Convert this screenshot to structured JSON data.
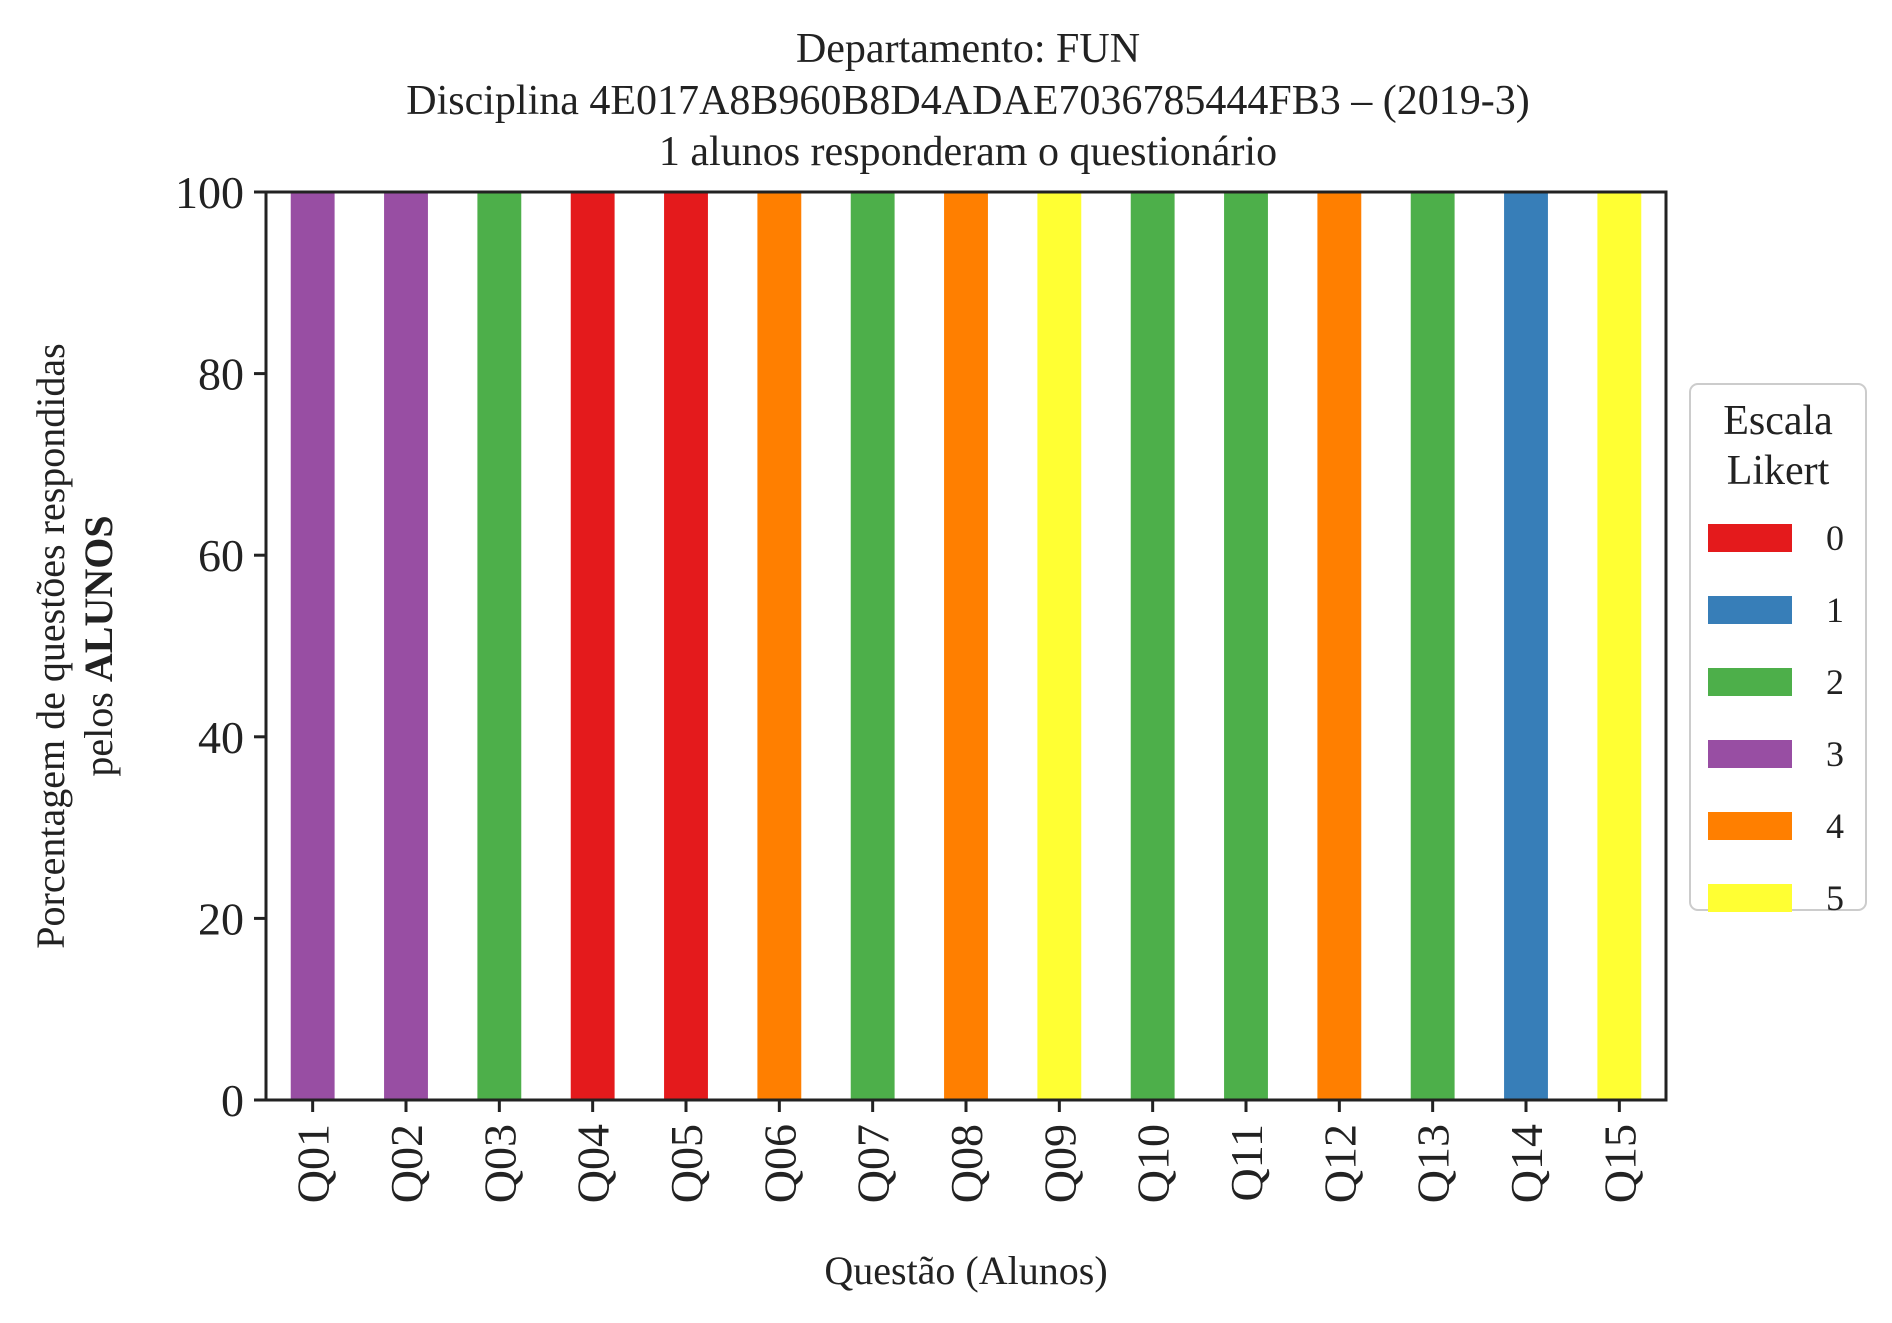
{
  "chart_data": {
    "type": "bar",
    "stacked": true,
    "title_lines": [
      "Departamento: FUN",
      "Disciplina 4E017A8B960B8D4ADAE7036785444FB3 – (2019-3)",
      "1 alunos responderam o questionário"
    ],
    "ylabel_line1": "Porcentagem de questões respondidas",
    "ylabel_line2_prefix": "pelos ",
    "ylabel_line2_bold": "ALUNOS",
    "xlabel": "Questão (Alunos)",
    "ylim": [
      0,
      100
    ],
    "yticks": [
      0,
      20,
      40,
      60,
      80,
      100
    ],
    "grid": false,
    "legend": {
      "title_line1": "Escala",
      "title_line2": "Likert",
      "placement": "right",
      "entries": [
        {
          "label": "0",
          "color": "#e41a1c"
        },
        {
          "label": "1",
          "color": "#377eb8"
        },
        {
          "label": "2",
          "color": "#4daf4a"
        },
        {
          "label": "3",
          "color": "#984ea3"
        },
        {
          "label": "4",
          "color": "#ff7f00"
        },
        {
          "label": "5",
          "color": "#ffff33"
        }
      ]
    },
    "categories": [
      "Q01",
      "Q02",
      "Q03",
      "Q04",
      "Q05",
      "Q06",
      "Q07",
      "Q08",
      "Q09",
      "Q10",
      "Q11",
      "Q12",
      "Q13",
      "Q14",
      "Q15"
    ],
    "series": [
      {
        "name": "0",
        "color": "#e41a1c",
        "values": [
          0,
          0,
          0,
          100,
          100,
          0,
          0,
          0,
          0,
          0,
          0,
          0,
          0,
          0,
          0
        ]
      },
      {
        "name": "1",
        "color": "#377eb8",
        "values": [
          0,
          0,
          0,
          0,
          0,
          0,
          0,
          0,
          0,
          0,
          0,
          0,
          0,
          100,
          0
        ]
      },
      {
        "name": "2",
        "color": "#4daf4a",
        "values": [
          0,
          0,
          100,
          0,
          0,
          0,
          100,
          0,
          0,
          100,
          100,
          0,
          100,
          0,
          0
        ]
      },
      {
        "name": "3",
        "color": "#984ea3",
        "values": [
          100,
          100,
          0,
          0,
          0,
          0,
          0,
          0,
          0,
          0,
          0,
          0,
          0,
          0,
          0
        ]
      },
      {
        "name": "4",
        "color": "#ff7f00",
        "values": [
          0,
          0,
          0,
          0,
          0,
          100,
          0,
          100,
          0,
          0,
          0,
          100,
          0,
          0,
          0
        ]
      },
      {
        "name": "5",
        "color": "#ffff33",
        "values": [
          0,
          0,
          0,
          0,
          0,
          0,
          0,
          0,
          100,
          0,
          0,
          0,
          0,
          0,
          100
        ]
      }
    ]
  }
}
